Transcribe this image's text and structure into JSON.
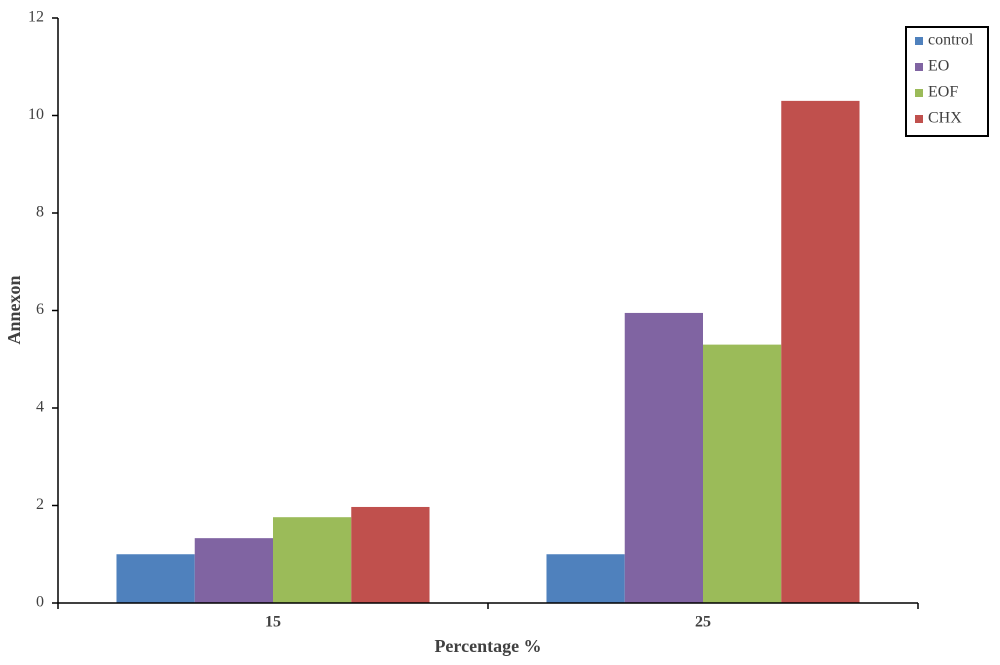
{
  "chart_data": {
    "type": "bar",
    "x_label": "Percentage %",
    "y_label": "Annexon",
    "categories": [
      "15",
      "25"
    ],
    "series": [
      {
        "name": "control",
        "color": "#4f81bd",
        "values": [
          1.0,
          1.0
        ]
      },
      {
        "name": "EO",
        "color": "#8064a2",
        "values": [
          1.33,
          5.95
        ]
      },
      {
        "name": "EOF",
        "color": "#9bbb59",
        "values": [
          1.76,
          5.3
        ]
      },
      {
        "name": "CHX",
        "color": "#c0504d",
        "values": [
          1.97,
          10.3
        ]
      }
    ],
    "ylim": [
      0,
      12
    ],
    "yticks": [
      0,
      2,
      4,
      6,
      8,
      10,
      12
    ],
    "grid": false,
    "legend": "top-right"
  }
}
